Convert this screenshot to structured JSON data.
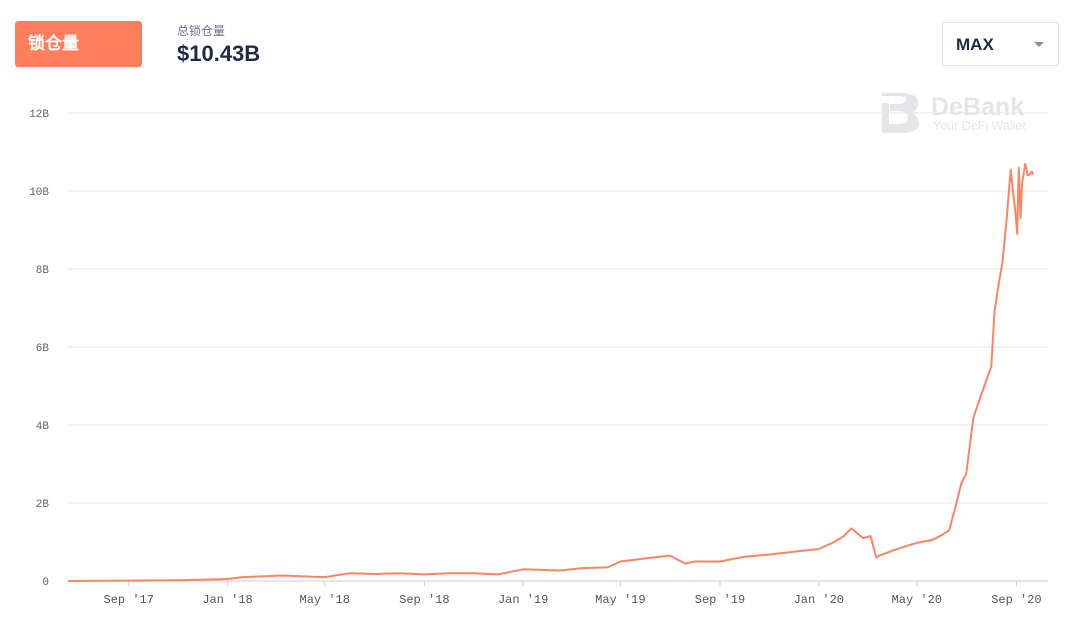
{
  "header": {
    "metric_button": "锁仓量",
    "stat_label": "总锁仓量",
    "stat_value": "$10.43B",
    "range_value": "MAX"
  },
  "watermark": {
    "name": "DeBank",
    "tagline": "Your DeFi Wallet"
  },
  "colors": {
    "accent": "#ff7f5c",
    "line": "#fa8564",
    "grid": "#e6e6e6"
  },
  "chart_data": {
    "type": "line",
    "title": "",
    "xlabel": "",
    "ylabel": "",
    "grid": true,
    "ylim": [
      0,
      12
    ],
    "yticks": [
      {
        "value": 0,
        "label": "0"
      },
      {
        "value": 2,
        "label": "2B"
      },
      {
        "value": 4,
        "label": "4B"
      },
      {
        "value": 6,
        "label": "6B"
      },
      {
        "value": 8,
        "label": "8B"
      },
      {
        "value": 10,
        "label": "10B"
      },
      {
        "value": 12,
        "label": "12B"
      }
    ],
    "xlim": [
      "2017-06-18",
      "2020-10-10"
    ],
    "xticks": [
      {
        "date": "2017-09-01",
        "label": "Sep '17"
      },
      {
        "date": "2018-01-01",
        "label": "Jan '18"
      },
      {
        "date": "2018-05-01",
        "label": "May '18"
      },
      {
        "date": "2018-09-01",
        "label": "Sep '18"
      },
      {
        "date": "2019-01-01",
        "label": "Jan '19"
      },
      {
        "date": "2019-05-01",
        "label": "May '19"
      },
      {
        "date": "2019-09-01",
        "label": "Sep '19"
      },
      {
        "date": "2020-01-01",
        "label": "Jan '20"
      },
      {
        "date": "2020-05-01",
        "label": "May '20"
      },
      {
        "date": "2020-09-01",
        "label": "Sep '20"
      }
    ],
    "series": [
      {
        "x": [
          "2017-06-18",
          "2017-09-01",
          "2017-11-01",
          "2017-12-15",
          "2018-01-01",
          "2018-01-20",
          "2018-02-15",
          "2018-03-10",
          "2018-04-01",
          "2018-05-01",
          "2018-06-01",
          "2018-07-01",
          "2018-08-01",
          "2018-09-01",
          "2018-10-01",
          "2018-11-01",
          "2018-12-01",
          "2019-01-01",
          "2019-02-15",
          "2019-03-15",
          "2019-04-15",
          "2019-05-01",
          "2019-06-01",
          "2019-07-01",
          "2019-07-20",
          "2019-08-01",
          "2019-09-01",
          "2019-10-01",
          "2019-11-01",
          "2019-12-01",
          "2020-01-01",
          "2020-01-20",
          "2020-02-01",
          "2020-02-10",
          "2020-02-16",
          "2020-02-25",
          "2020-03-05",
          "2020-03-12",
          "2020-03-16",
          "2020-04-01",
          "2020-05-01",
          "2020-05-20",
          "2020-06-01",
          "2020-06-10",
          "2020-06-18",
          "2020-06-25",
          "2020-07-01",
          "2020-07-10",
          "2020-07-20",
          "2020-08-01",
          "2020-08-05",
          "2020-08-10",
          "2020-08-15",
          "2020-08-20",
          "2020-08-25",
          "2020-08-31",
          "2020-09-02",
          "2020-09-04",
          "2020-09-06",
          "2020-09-08",
          "2020-09-12",
          "2020-09-15",
          "2020-09-18",
          "2020-09-20",
          "2020-09-22"
        ],
        "values": [
          0.0,
          0.01,
          0.02,
          0.04,
          0.05,
          0.1,
          0.12,
          0.14,
          0.12,
          0.1,
          0.2,
          0.18,
          0.2,
          0.17,
          0.2,
          0.2,
          0.17,
          0.3,
          0.27,
          0.33,
          0.35,
          0.5,
          0.58,
          0.65,
          0.45,
          0.5,
          0.5,
          0.62,
          0.68,
          0.75,
          0.82,
          1.0,
          1.15,
          1.35,
          1.25,
          1.1,
          1.15,
          0.6,
          0.65,
          0.78,
          0.98,
          1.05,
          1.18,
          1.3,
          1.92,
          2.5,
          2.75,
          4.2,
          4.8,
          5.5,
          6.9,
          7.6,
          8.2,
          9.3,
          10.55,
          9.4,
          8.9,
          10.6,
          9.3,
          10.2,
          10.7,
          10.4,
          10.43,
          10.5,
          10.43
        ]
      }
    ]
  }
}
